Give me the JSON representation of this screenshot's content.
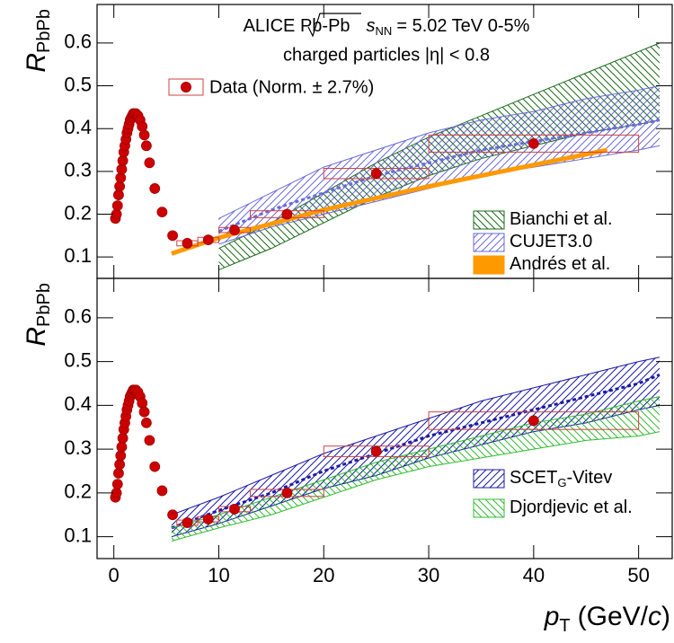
{
  "chart_data": [
    {
      "type": "scatter",
      "annotation": {
        "line1": [
          "ALICE Pb-Pb",
          "s",
          "NN",
          "= 5.02 TeV 0-5%"
        ],
        "line2": "charged particles |η| < 0.8"
      },
      "ylabel": [
        "R",
        "PbPb"
      ],
      "xlim": [
        -1.6,
        53.2
      ],
      "ylim": [
        0.05,
        0.69
      ],
      "xticks": [
        0,
        10,
        20,
        30,
        40,
        50
      ],
      "yticks": [
        0.1,
        0.2,
        0.3,
        0.4,
        0.5,
        0.6
      ],
      "data": {
        "name": "Data (Norm. ± 2.7%)",
        "color": "#cc0000",
        "x": [
          0.15,
          0.25,
          0.35,
          0.45,
          0.55,
          0.65,
          0.75,
          0.85,
          0.95,
          1.05,
          1.15,
          1.25,
          1.35,
          1.45,
          1.55,
          1.65,
          1.75,
          1.85,
          1.95,
          2.1,
          2.3,
          2.5,
          2.7,
          2.9,
          3.1,
          3.4,
          3.9,
          4.6,
          5.6,
          7,
          9,
          11.5,
          16.5,
          25,
          40
        ],
        "values": [
          0.19,
          0.2,
          0.22,
          0.245,
          0.265,
          0.285,
          0.305,
          0.325,
          0.345,
          0.36,
          0.375,
          0.39,
          0.4,
          0.41,
          0.42,
          0.425,
          0.43,
          0.435,
          0.435,
          0.435,
          0.43,
          0.42,
          0.405,
          0.385,
          0.36,
          0.32,
          0.26,
          0.205,
          0.15,
          0.132,
          0.14,
          0.163,
          0.2,
          0.295,
          0.365
        ],
        "syst": {
          "xlo": [
            6,
            8,
            10,
            13,
            20,
            30
          ],
          "xhi": [
            8,
            10,
            13,
            20,
            30,
            50
          ],
          "ylo": [
            0.126,
            0.134,
            0.157,
            0.192,
            0.283,
            0.345
          ],
          "yhi": [
            0.138,
            0.146,
            0.169,
            0.208,
            0.307,
            0.385
          ]
        }
      },
      "bands": [
        {
          "name": "Bianchi et al.",
          "color": "#1a6b1a",
          "hatch": "back",
          "x": [
            10,
            15,
            20,
            25,
            30,
            35,
            40,
            45,
            50,
            52
          ],
          "lo": [
            0.07,
            0.12,
            0.18,
            0.24,
            0.29,
            0.33,
            0.36,
            0.39,
            0.41,
            0.42
          ],
          "hi": [
            0.12,
            0.18,
            0.25,
            0.32,
            0.38,
            0.43,
            0.48,
            0.53,
            0.58,
            0.6
          ]
        },
        {
          "name": "CUJET3.0",
          "color": "#6a6adc",
          "hatch": "fwd",
          "x": [
            10,
            15,
            20,
            25,
            30,
            35,
            40,
            45,
            50,
            52
          ],
          "lo": [
            0.13,
            0.17,
            0.2,
            0.23,
            0.26,
            0.29,
            0.31,
            0.33,
            0.35,
            0.36
          ],
          "hi": [
            0.19,
            0.25,
            0.31,
            0.35,
            0.39,
            0.42,
            0.44,
            0.47,
            0.49,
            0.5
          ],
          "center": [
            0.16,
            0.21,
            0.25,
            0.29,
            0.32,
            0.35,
            0.37,
            0.39,
            0.41,
            0.42
          ]
        }
      ],
      "lines": [
        {
          "name": "Andrés et al.",
          "color": "#ff9900",
          "x": [
            5.5,
            10,
            20,
            30,
            40,
            47
          ],
          "values": [
            0.108,
            0.145,
            0.21,
            0.265,
            0.315,
            0.35
          ]
        }
      ]
    },
    {
      "type": "scatter",
      "ylabel": [
        "R",
        "PbPb"
      ],
      "xlabel": [
        "p",
        "T",
        "(GeV/",
        "c",
        ")"
      ],
      "xlim": [
        -1.6,
        53.2
      ],
      "ylim": [
        0.05,
        0.69
      ],
      "xticks": [
        0,
        10,
        20,
        30,
        40,
        50
      ],
      "yticks": [
        0.1,
        0.2,
        0.3,
        0.4,
        0.5,
        0.6
      ],
      "data": {
        "color": "#cc0000",
        "x": [
          0.15,
          0.25,
          0.35,
          0.45,
          0.55,
          0.65,
          0.75,
          0.85,
          0.95,
          1.05,
          1.15,
          1.25,
          1.35,
          1.45,
          1.55,
          1.65,
          1.75,
          1.85,
          1.95,
          2.1,
          2.3,
          2.5,
          2.7,
          2.9,
          3.1,
          3.4,
          3.9,
          4.6,
          5.6,
          7,
          9,
          11.5,
          16.5,
          25,
          40
        ],
        "values": [
          0.19,
          0.2,
          0.22,
          0.245,
          0.265,
          0.285,
          0.305,
          0.325,
          0.345,
          0.36,
          0.375,
          0.39,
          0.4,
          0.41,
          0.42,
          0.425,
          0.43,
          0.435,
          0.435,
          0.435,
          0.43,
          0.42,
          0.405,
          0.385,
          0.36,
          0.32,
          0.26,
          0.205,
          0.15,
          0.132,
          0.14,
          0.163,
          0.2,
          0.295,
          0.365
        ],
        "syst": {
          "xlo": [
            6,
            8,
            10,
            13,
            20,
            30
          ],
          "xhi": [
            8,
            10,
            13,
            20,
            30,
            50
          ],
          "ylo": [
            0.126,
            0.134,
            0.157,
            0.192,
            0.283,
            0.345
          ],
          "yhi": [
            0.138,
            0.146,
            0.169,
            0.208,
            0.307,
            0.385
          ]
        }
      },
      "bands": [
        {
          "name": [
            "SCET",
            "G",
            "-Vitev"
          ],
          "color": "#1a1aa6",
          "hatch": "fwd",
          "x": [
            5.5,
            10,
            15,
            20,
            25,
            30,
            35,
            40,
            45,
            50,
            52
          ],
          "lo": [
            0.1,
            0.13,
            0.17,
            0.21,
            0.24,
            0.28,
            0.31,
            0.34,
            0.36,
            0.39,
            0.4
          ],
          "hi": [
            0.15,
            0.19,
            0.24,
            0.29,
            0.33,
            0.37,
            0.41,
            0.44,
            0.47,
            0.5,
            0.51
          ],
          "center": [
            0.12,
            0.16,
            0.2,
            0.25,
            0.29,
            0.33,
            0.36,
            0.39,
            0.42,
            0.45,
            0.47
          ]
        },
        {
          "name": "Djordjevic et al.",
          "color": "#33bb33",
          "hatch": "back",
          "x": [
            5.5,
            10,
            15,
            20,
            25,
            30,
            35,
            40,
            45,
            50,
            52
          ],
          "lo": [
            0.09,
            0.12,
            0.15,
            0.19,
            0.23,
            0.26,
            0.28,
            0.3,
            0.32,
            0.33,
            0.34
          ],
          "hi": [
            0.12,
            0.15,
            0.19,
            0.23,
            0.27,
            0.3,
            0.33,
            0.36,
            0.38,
            0.41,
            0.42
          ]
        }
      ],
      "lines": []
    }
  ]
}
